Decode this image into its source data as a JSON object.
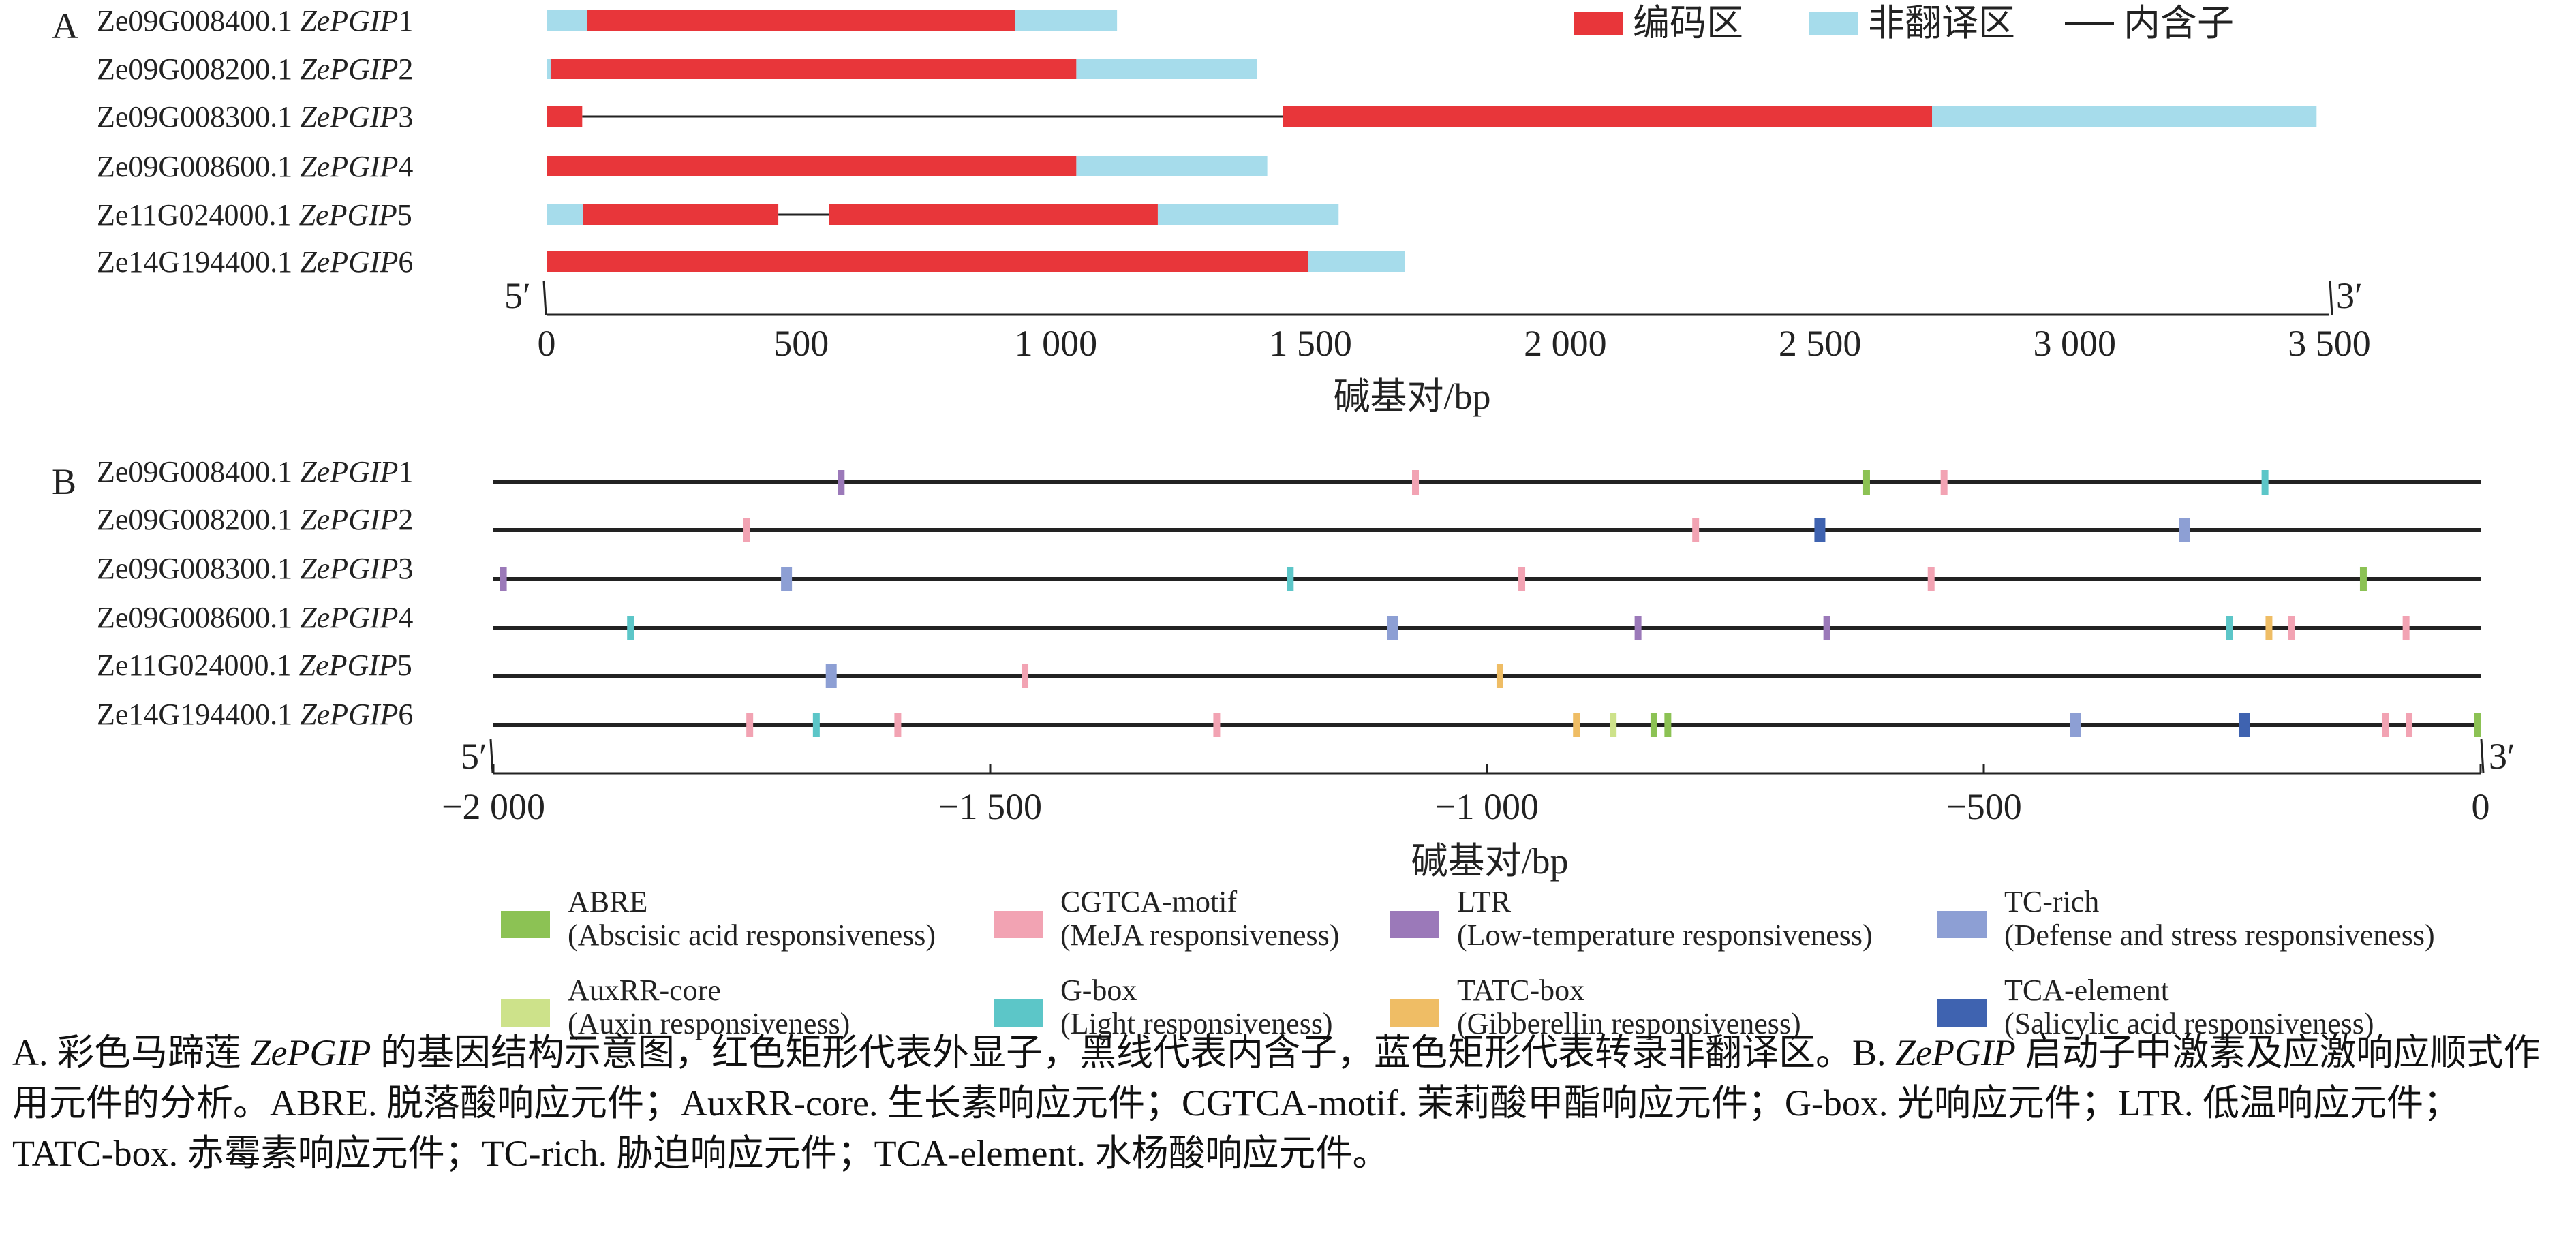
{
  "panel_a": {
    "label": "A",
    "genes": [
      {
        "id": "Ze09G008400.1",
        "name": "ZePGIP",
        "num": "1",
        "segments": [
          {
            "type": "utr",
            "start": 0,
            "end": 80
          },
          {
            "type": "cds",
            "start": 80,
            "end": 920
          },
          {
            "type": "utr",
            "start": 920,
            "end": 1120
          }
        ]
      },
      {
        "id": "Ze09G008200.1",
        "name": "ZePGIP",
        "num": "2",
        "segments": [
          {
            "type": "utr",
            "start": 0,
            "end": 8
          },
          {
            "type": "cds",
            "start": 8,
            "end": 1040
          },
          {
            "type": "utr",
            "start": 1040,
            "end": 1395
          }
        ]
      },
      {
        "id": "Ze09G008300.1",
        "name": "ZePGIP",
        "num": "3",
        "segments": [
          {
            "type": "cds",
            "start": 0,
            "end": 70
          },
          {
            "type": "intron",
            "start": 70,
            "end": 1445
          },
          {
            "type": "cds",
            "start": 1445,
            "end": 2720
          },
          {
            "type": "utr",
            "start": 2720,
            "end": 3475
          }
        ]
      },
      {
        "id": "Ze09G008600.1",
        "name": "ZePGIP",
        "num": "4",
        "segments": [
          {
            "type": "cds",
            "start": 0,
            "end": 1040
          },
          {
            "type": "utr",
            "start": 1040,
            "end": 1415
          }
        ]
      },
      {
        "id": "Ze11G024000.1",
        "name": "ZePGIP",
        "num": "5",
        "segments": [
          {
            "type": "utr",
            "start": 0,
            "end": 72
          },
          {
            "type": "cds",
            "start": 72,
            "end": 455
          },
          {
            "type": "intron",
            "start": 455,
            "end": 555
          },
          {
            "type": "cds",
            "start": 555,
            "end": 1200
          },
          {
            "type": "utr",
            "start": 1200,
            "end": 1555
          }
        ]
      },
      {
        "id": "Ze14G194400.1",
        "name": "ZePGIP",
        "num": "6",
        "segments": [
          {
            "type": "cds",
            "start": 0,
            "end": 1495
          },
          {
            "type": "utr",
            "start": 1495,
            "end": 1685
          }
        ]
      }
    ],
    "axis": {
      "min": 0,
      "max": 3500,
      "ticks": [
        0,
        500,
        1000,
        1500,
        2000,
        2500,
        3000,
        3500
      ],
      "tick_labels": [
        "0",
        "500",
        "1 000",
        "1 500",
        "2 000",
        "2 500",
        "3 000",
        "3 500"
      ],
      "label": "碱基对/bp",
      "end_left": "5′",
      "end_right": "3′"
    },
    "legend": [
      {
        "key": "cds",
        "label": "编码区",
        "color": "#e8363a"
      },
      {
        "key": "utr",
        "label": "非翻译区",
        "color": "#a6dceb"
      },
      {
        "key": "intron",
        "label": "内含子",
        "color": "#222222"
      }
    ]
  },
  "panel_b": {
    "label": "B",
    "element_types": [
      {
        "key": "ABRE",
        "name": "ABRE",
        "desc": "(Abscisic acid responsiveness)",
        "color": "#8cc254"
      },
      {
        "key": "CGTCA",
        "name": "CGTCA-motif",
        "desc": "(MeJA responsiveness)",
        "color": "#f2a3b3"
      },
      {
        "key": "LTR",
        "name": "LTR",
        "desc": "(Low-temperature responsiveness)",
        "color": "#9b79b9"
      },
      {
        "key": "TC",
        "name": "TC-rich",
        "desc": "(Defense and stress responsiveness)",
        "color": "#8d9fd4"
      },
      {
        "key": "AuxRR",
        "name": "AuxRR-core",
        "desc": "(Auxin responsiveness)",
        "color": "#cde28a"
      },
      {
        "key": "Gbox",
        "name": "G-box",
        "desc": "(Light responsiveness)",
        "color": "#5cc6c8"
      },
      {
        "key": "TATC",
        "name": "TATC-box",
        "desc": "(Gibberellin responsiveness)",
        "color": "#efbd65"
      },
      {
        "key": "TCA",
        "name": "TCA-element",
        "desc": "(Salicylic acid responsiveness)",
        "color": "#3f63b0"
      }
    ],
    "promoters": [
      {
        "id": "Ze09G008400.1",
        "name": "ZePGIP",
        "num": "1",
        "elements": [
          {
            "pos": -1650,
            "type": "LTR"
          },
          {
            "pos": -1072,
            "type": "CGTCA"
          },
          {
            "pos": -618,
            "type": "ABRE"
          },
          {
            "pos": -540,
            "type": "CGTCA"
          },
          {
            "pos": -217,
            "type": "Gbox"
          }
        ]
      },
      {
        "id": "Ze09G008200.1",
        "name": "ZePGIP",
        "num": "2",
        "elements": [
          {
            "pos": -1745,
            "type": "CGTCA"
          },
          {
            "pos": -790,
            "type": "CGTCA"
          },
          {
            "pos": -665,
            "type": "TCA"
          },
          {
            "pos": -298,
            "type": "TC"
          }
        ]
      },
      {
        "id": "Ze09G008300.1",
        "name": "ZePGIP",
        "num": "3",
        "elements": [
          {
            "pos": -1990,
            "type": "LTR"
          },
          {
            "pos": -1705,
            "type": "TC"
          },
          {
            "pos": -1198,
            "type": "Gbox"
          },
          {
            "pos": -965,
            "type": "CGTCA"
          },
          {
            "pos": -553,
            "type": "CGTCA"
          },
          {
            "pos": -118,
            "type": "ABRE"
          }
        ]
      },
      {
        "id": "Ze09G008600.1",
        "name": "ZePGIP",
        "num": "4",
        "elements": [
          {
            "pos": -1862,
            "type": "Gbox"
          },
          {
            "pos": -1095,
            "type": "TC"
          },
          {
            "pos": -848,
            "type": "LTR"
          },
          {
            "pos": -658,
            "type": "LTR"
          },
          {
            "pos": -253,
            "type": "Gbox"
          },
          {
            "pos": -213,
            "type": "TATC"
          },
          {
            "pos": -190,
            "type": "CGTCA"
          },
          {
            "pos": -75,
            "type": "CGTCA"
          }
        ]
      },
      {
        "id": "Ze11G024000.1",
        "name": "ZePGIP",
        "num": "5",
        "elements": [
          {
            "pos": -1660,
            "type": "TC"
          },
          {
            "pos": -1465,
            "type": "CGTCA"
          },
          {
            "pos": -987,
            "type": "TATC"
          }
        ]
      },
      {
        "id": "Ze14G194400.1",
        "name": "ZePGIP",
        "num": "6",
        "elements": [
          {
            "pos": -1742,
            "type": "CGTCA"
          },
          {
            "pos": -1675,
            "type": "Gbox"
          },
          {
            "pos": -1593,
            "type": "CGTCA"
          },
          {
            "pos": -1272,
            "type": "CGTCA"
          },
          {
            "pos": -910,
            "type": "TATC"
          },
          {
            "pos": -873,
            "type": "AuxRR"
          },
          {
            "pos": -832,
            "type": "ABRE"
          },
          {
            "pos": -818,
            "type": "ABRE"
          },
          {
            "pos": -408,
            "type": "TC"
          },
          {
            "pos": -238,
            "type": "TCA"
          },
          {
            "pos": -96,
            "type": "CGTCA"
          },
          {
            "pos": -72,
            "type": "CGTCA"
          },
          {
            "pos": -3,
            "type": "ABRE"
          }
        ]
      }
    ],
    "axis": {
      "min": -2000,
      "max": 0,
      "ticks": [
        -2000,
        -1500,
        -1000,
        -500,
        0
      ],
      "tick_labels": [
        "−2 000",
        "−1 500",
        "−1 000",
        "−500",
        "0"
      ],
      "label": "碱基对/bp",
      "end_left": "5′",
      "end_right": "3′"
    }
  },
  "caption": {
    "a_lead": "A. 彩色马蹄莲 ",
    "a_italic": "ZePGIP",
    "a_text": " 的基因结构示意图，红色矩形代表外显子，黑线代表内含子，蓝色矩形代表转录非翻译区。B. ",
    "b_italic": "ZePGIP",
    "b_text": " 启动子中激素及应激响应顺式作用元件的分析。ABRE. 脱落酸响应元件；AuxRR-core. 生长素响应元件；CGTCA-motif. 茉莉酸甲酯响应元件；G-box. 光响应元件；LTR. 低温响应元件；TATC-box. 赤霉素响应元件；TC-rich. 胁迫响应元件；TCA-element. 水杨酸响应元件。"
  }
}
